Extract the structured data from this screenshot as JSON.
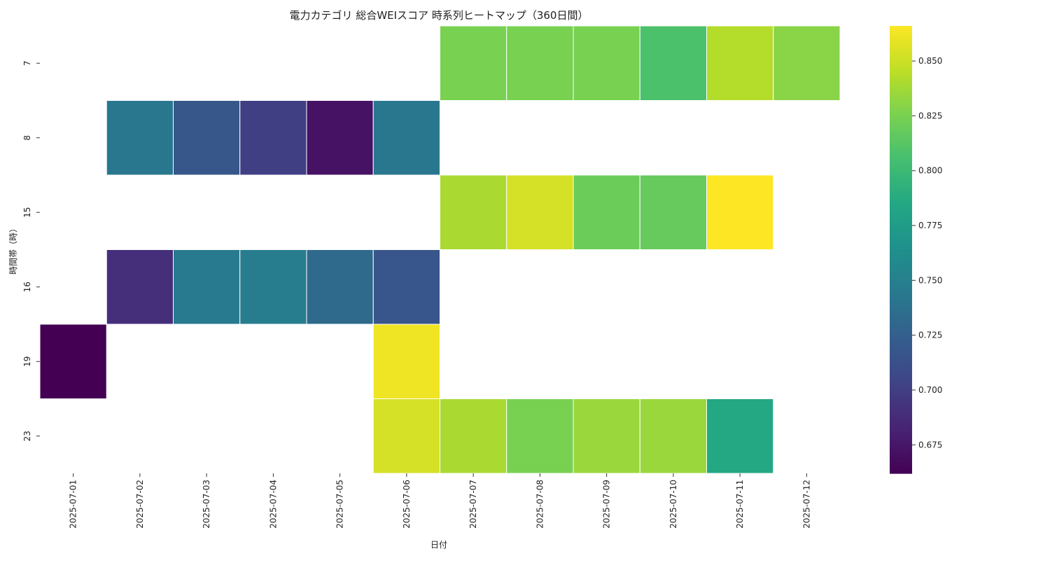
{
  "chart_data": {
    "type": "heatmap",
    "title": "電力カテゴリ 総合WEIスコア 時系列ヒートマップ（360日間）",
    "xlabel": "日付",
    "ylabel": "時間帯（時）",
    "x": [
      "2025-07-01",
      "2025-07-02",
      "2025-07-03",
      "2025-07-04",
      "2025-07-05",
      "2025-07-06",
      "2025-07-07",
      "2025-07-08",
      "2025-07-09",
      "2025-07-10",
      "2025-07-11",
      "2025-07-12"
    ],
    "y": [
      "7",
      "8",
      "15",
      "16",
      "19",
      "23"
    ],
    "values": [
      [
        null,
        null,
        null,
        null,
        null,
        null,
        0.825,
        0.825,
        0.825,
        0.808,
        0.843,
        0.83
      ],
      [
        null,
        0.743,
        0.718,
        0.7,
        0.672,
        0.743,
        null,
        null,
        null,
        null,
        null,
        null
      ],
      [
        null,
        null,
        null,
        null,
        null,
        null,
        0.84,
        0.853,
        0.82,
        0.818,
        0.866,
        null
      ],
      [
        null,
        0.69,
        0.746,
        0.748,
        0.733,
        0.717,
        null,
        null,
        null,
        null,
        null,
        null
      ],
      [
        0.662,
        null,
        null,
        null,
        null,
        0.862,
        null,
        null,
        null,
        null,
        null,
        null
      ],
      [
        null,
        null,
        null,
        null,
        null,
        0.853,
        0.84,
        0.825,
        0.835,
        0.835,
        0.785,
        null
      ]
    ],
    "colorbar": {
      "colormap": "viridis",
      "range": [
        0.662,
        0.866
      ],
      "ticks": [
        "0.675",
        "0.700",
        "0.725",
        "0.750",
        "0.775",
        "0.800",
        "0.825",
        "0.850"
      ]
    },
    "missing_color": "#ffffff",
    "gridline_color": "#ffffff"
  }
}
